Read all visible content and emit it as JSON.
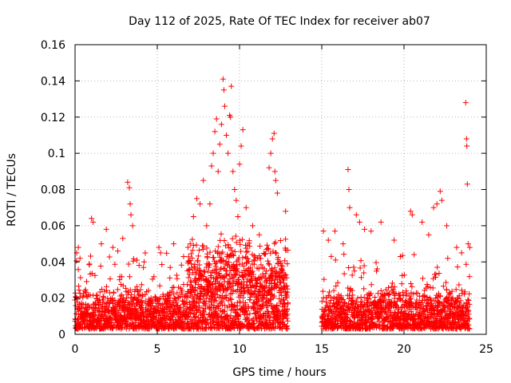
{
  "chart_data": {
    "type": "scatter",
    "title": "Day 112 of 2025, Rate Of TEC Index for receiver ab07",
    "xlabel": "GPS time / hours",
    "ylabel": "ROTI / TECUs",
    "xlim": [
      0,
      25
    ],
    "ylim": [
      0,
      0.16
    ],
    "x_ticks": [
      "0",
      "5",
      "10",
      "15",
      "20",
      "25"
    ],
    "y_ticks": [
      "0",
      "0.02",
      "0.04",
      "0.06",
      "0.08",
      "0.1",
      "0.12",
      "0.14",
      "0.16"
    ],
    "grid": true,
    "marker": "+",
    "color": "#ff0000",
    "series": [
      {
        "points": [
          [
            0.1,
            0.045
          ],
          [
            0.2,
            0.048
          ],
          [
            0.3,
            0.042
          ],
          [
            1.0,
            0.064
          ],
          [
            1.1,
            0.062
          ],
          [
            1.6,
            0.05
          ],
          [
            1.9,
            0.058
          ],
          [
            2.3,
            0.048
          ],
          [
            2.6,
            0.046
          ],
          [
            2.9,
            0.053
          ],
          [
            3.2,
            0.084
          ],
          [
            3.3,
            0.081
          ],
          [
            3.35,
            0.072
          ],
          [
            3.4,
            0.066
          ],
          [
            3.5,
            0.06
          ],
          [
            4.2,
            0.04
          ],
          [
            5.1,
            0.048
          ],
          [
            5.2,
            0.045
          ],
          [
            6.0,
            0.05
          ],
          [
            6.6,
            0.043
          ],
          [
            7.0,
            0.05
          ],
          [
            7.2,
            0.065
          ],
          [
            7.4,
            0.075
          ],
          [
            7.6,
            0.072
          ],
          [
            7.8,
            0.085
          ],
          [
            8.0,
            0.06
          ],
          [
            8.2,
            0.072
          ],
          [
            8.3,
            0.093
          ],
          [
            8.4,
            0.1
          ],
          [
            8.5,
            0.112
          ],
          [
            8.6,
            0.119
          ],
          [
            8.7,
            0.09
          ],
          [
            8.8,
            0.105
          ],
          [
            8.9,
            0.116
          ],
          [
            9.0,
            0.141
          ],
          [
            9.05,
            0.135
          ],
          [
            9.1,
            0.126
          ],
          [
            9.2,
            0.11
          ],
          [
            9.3,
            0.1
          ],
          [
            9.4,
            0.121
          ],
          [
            9.45,
            0.12
          ],
          [
            9.5,
            0.137
          ],
          [
            9.6,
            0.09
          ],
          [
            9.7,
            0.08
          ],
          [
            9.8,
            0.074
          ],
          [
            9.9,
            0.065
          ],
          [
            10.0,
            0.094
          ],
          [
            10.1,
            0.104
          ],
          [
            10.2,
            0.113
          ],
          [
            10.4,
            0.07
          ],
          [
            10.8,
            0.06
          ],
          [
            11.2,
            0.055
          ],
          [
            11.8,
            0.092
          ],
          [
            11.9,
            0.1
          ],
          [
            12.0,
            0.108
          ],
          [
            12.1,
            0.111
          ],
          [
            12.15,
            0.09
          ],
          [
            12.2,
            0.085
          ],
          [
            12.3,
            0.078
          ],
          [
            12.8,
            0.068
          ],
          [
            15.1,
            0.057
          ],
          [
            15.4,
            0.052
          ],
          [
            15.8,
            0.057
          ],
          [
            16.3,
            0.05
          ],
          [
            16.6,
            0.091
          ],
          [
            16.65,
            0.08
          ],
          [
            16.7,
            0.07
          ],
          [
            17.1,
            0.066
          ],
          [
            17.3,
            0.062
          ],
          [
            17.6,
            0.058
          ],
          [
            18.0,
            0.057
          ],
          [
            18.6,
            0.062
          ],
          [
            19.4,
            0.052
          ],
          [
            20.4,
            0.068
          ],
          [
            20.5,
            0.066
          ],
          [
            21.1,
            0.062
          ],
          [
            21.5,
            0.055
          ],
          [
            21.8,
            0.07
          ],
          [
            22.0,
            0.072
          ],
          [
            22.2,
            0.079
          ],
          [
            22.3,
            0.074
          ],
          [
            22.6,
            0.06
          ],
          [
            23.2,
            0.048
          ],
          [
            23.5,
            0.045
          ],
          [
            23.75,
            0.128
          ],
          [
            23.8,
            0.108
          ],
          [
            23.82,
            0.104
          ],
          [
            23.85,
            0.083
          ],
          [
            23.9,
            0.05
          ],
          [
            24.0,
            0.048
          ]
        ]
      }
    ]
  }
}
